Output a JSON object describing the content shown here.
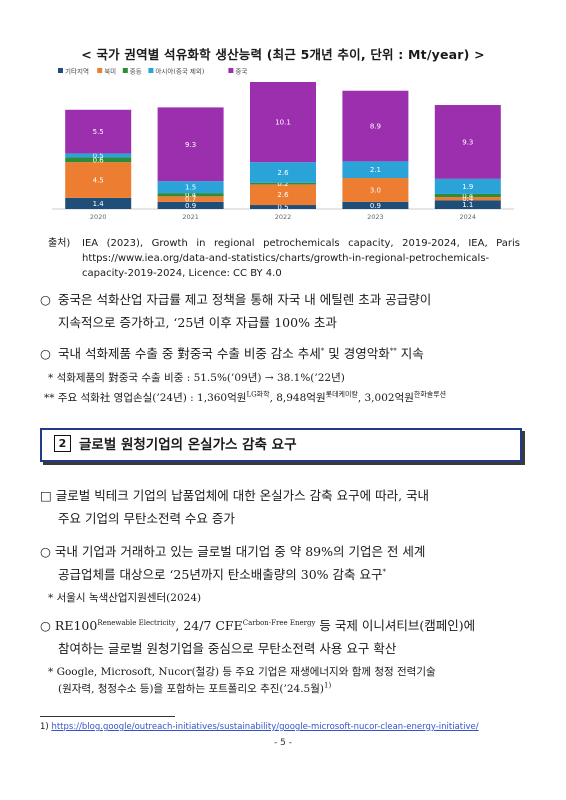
{
  "title": "< 국가 권역별 석유화학 생산능력 (최근 5개년 추이, 단위 : Mt/year) >",
  "chart_data": {
    "type": "bar",
    "stacked": true,
    "categories": [
      "2020",
      "2021",
      "2022",
      "2023",
      "2024"
    ],
    "series": [
      {
        "name": "기타지역",
        "color": "#1f4e79",
        "values": [
          1.4,
          0.9,
          0.5,
          0.9,
          1.1
        ]
      },
      {
        "name": "북미",
        "color": "#ed7d31",
        "values": [
          4.5,
          0.7,
          2.6,
          3.0,
          0.4
        ]
      },
      {
        "name": "중동",
        "color": "#2e8b3a",
        "values": [
          0.6,
          0.4,
          0.2,
          0.0,
          0.4
        ]
      },
      {
        "name": "아시아(중국 제외)",
        "color": "#2aa3d8",
        "values": [
          0.5,
          1.5,
          2.6,
          2.1,
          1.9
        ]
      },
      {
        "name": "중국",
        "color": "#9b2fae",
        "values": [
          5.5,
          9.3,
          10.1,
          8.9,
          9.3
        ]
      }
    ],
    "ylim": [
      0,
      16
    ],
    "legend": "top-left",
    "grid": false
  },
  "source": {
    "label": "출처)",
    "text": "IEA (2023), Growth in regional petrochemicals capacity, 2019-2024, IEA, Paris https://www.iea.org/data-and-statistics/charts/growth-in-regional-petrochemicals-capacity-2019-2024, Licence: CC BY 4.0"
  },
  "bullets1": [
    {
      "symbol": "○",
      "line1": "중국은 석화산업 자급률 제고 정책을 통해 자국 내 에틸렌 초과 공급량이",
      "line2": "지속적으로 증가하고, ‘25년 이후 자급률 100% 초과"
    },
    {
      "symbol": "○",
      "line1a": "국내 석화제품 수출 중 對중국 수출 비중 감소 추세",
      "sup1": "*",
      "line1b": " 및 경영악화",
      "sup2": "**",
      "line1c": " 지속"
    }
  ],
  "notes1": {
    "n1": "* 석화제품의 對중국 수출 비중 : 51.5%(’09년) → 38.1%(’22년)",
    "n2a": "** 주요 석화社 영업손실(’24년) : 1,360억원",
    "n2s1": "LG화학",
    "n2b": ", 8,948억원",
    "n2s2": "롯데케미칼",
    "n2c": ", 3,002억원",
    "n2s3": "한화솔루션"
  },
  "section": {
    "number": "2",
    "title": "글로벌 원청기업의 온실가스 감축 요구"
  },
  "bullets2": {
    "b1_symbol": "□",
    "b1_line1": "글로벌 빅테크 기업의 납품업체에 대한 온실가스 감축 요구에 따라, 국내",
    "b1_line2": "주요 기업의 무탄소전력 수요 증가",
    "b2_symbol": "○",
    "b2_line1": "국내 기업과 거래하고 있는 글로벌 대기업 중 약 89%의 기업은 전 세계",
    "b2_line2": "공급업체를 대상으로 ‘25년까지 탄소배출량의 30% 감축 요구",
    "b2_sup": "*",
    "note2": "* 서울시 녹색산업지원센터(2024)",
    "b3_symbol": "○",
    "b3_a": "RE100",
    "b3_sup1": "Renewable Electricity",
    "b3_b": ", 24/7 CFE",
    "b3_sup2": "Carbon-Free Energy",
    "b3_c": " 등 국제 이니셔티브(캠페인)에",
    "b3_line2": "참여하는 글로벌 원청기업을 중심으로 무탄소전력 사용 요구 확산",
    "note3_line1": "* Google, Microsoft, Nucor(철강) 등 주요 기업은 재생에너지와 함께 청정 전력기술",
    "note3_line2": "(원자력, 청정수소 등)을 포함하는 포트폴리오 추진(’24.5월)",
    "note3_sup": "1)"
  },
  "footnote": {
    "num": "1)",
    "url": "https://blog.google/outreach-initiatives/sustainability/google-microsoft-nucor-clean-energy-initiative/"
  },
  "page_number": "- 5 -"
}
